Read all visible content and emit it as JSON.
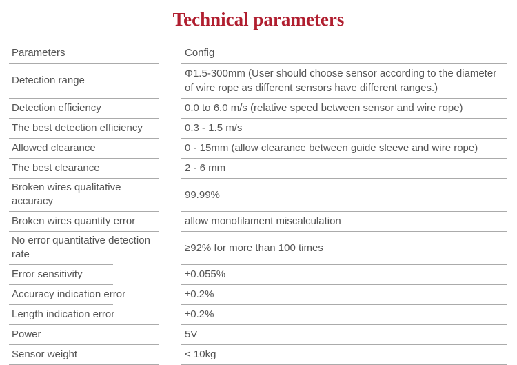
{
  "title": "Technical parameters",
  "colors": {
    "title_red": "#b01e2f",
    "body_text": "#545454",
    "rule_line": "#ababab"
  },
  "table": {
    "header": {
      "param": "Parameters",
      "config": "Config"
    },
    "rows": [
      {
        "param": "Detection range",
        "config": "Φ1.5-300mm (User should choose sensor according to the diameter of wire rope as different sensors have different ranges.)",
        "tall": true,
        "short_rule": false
      },
      {
        "param": "Detection efficiency",
        "config": "0.0 to 6.0 m/s (relative speed between sensor and wire rope)",
        "tall": false,
        "short_rule": false
      },
      {
        "param": "The best detection efficiency",
        "config": "0.3 - 1.5 m/s",
        "tall": false,
        "short_rule": false
      },
      {
        "param": "Allowed clearance",
        "config": "0 - 15mm (allow clearance between guide sleeve and wire rope)",
        "tall": false,
        "short_rule": false
      },
      {
        "param": "The best clearance",
        "config": "2 - 6 mm",
        "tall": false,
        "short_rule": false
      },
      {
        "param": "Broken wires qualitative accuracy",
        "config": "99.99%",
        "tall": false,
        "short_rule": false
      },
      {
        "param": "Broken wires quantity error",
        "config": "allow monofilament miscalculation",
        "tall": false,
        "short_rule": false
      },
      {
        "param": "No error quantitative detection rate",
        "config": "≥92% for more than 100 times",
        "tall": true,
        "short_rule": true
      },
      {
        "param": "Error sensitivity",
        "config": "±0.055%",
        "tall": false,
        "short_rule": true
      },
      {
        "param": "Accuracy indication error",
        "config": "±0.2%",
        "tall": false,
        "short_rule": true
      },
      {
        "param": "Length indication error",
        "config": "±0.2%",
        "tall": false,
        "short_rule": false
      },
      {
        "param": "Power",
        "config": "5V",
        "tall": false,
        "short_rule": false
      },
      {
        "param": "Sensor weight",
        "config": "< 10kg",
        "tall": false,
        "short_rule": false
      }
    ]
  }
}
